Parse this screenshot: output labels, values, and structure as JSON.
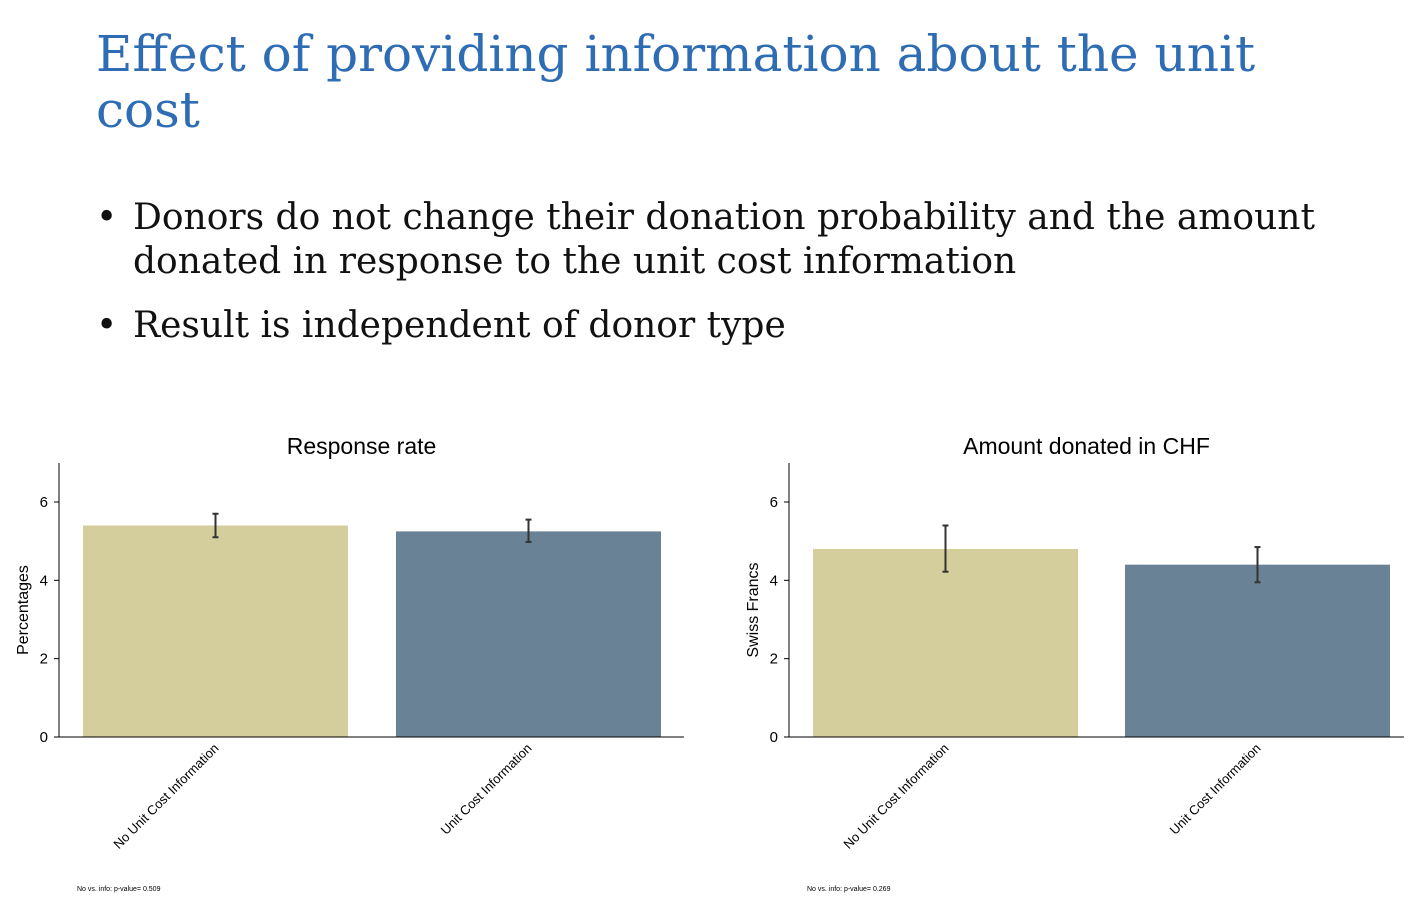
{
  "slide": {
    "title": "Effect of providing information about the unit cost",
    "bullets": [
      "Donors do not change their donation probability and the amount donated in response to the unit cost information",
      "Result is independent of donor type"
    ]
  },
  "colors": {
    "title": "#2e6db4",
    "bar_no_info": "#d4ce9d",
    "bar_info": "#6a8296",
    "error_bar": "#333333"
  },
  "chart_data": [
    {
      "type": "bar",
      "title": "Response rate",
      "ylabel": "Percentages",
      "xlabel": "",
      "categories": [
        "No Unit Cost Information",
        "Unit Cost Information"
      ],
      "values": [
        5.4,
        5.25
      ],
      "error_low": [
        5.1,
        4.98
      ],
      "error_high": [
        5.7,
        5.55
      ],
      "ylim": [
        0,
        7
      ],
      "yticks": [
        "0",
        "2",
        "4",
        "6"
      ],
      "grid": false,
      "note": "No vs. info: p-value= 0.509"
    },
    {
      "type": "bar",
      "title": "Amount donated in CHF",
      "ylabel": "Swiss Francs",
      "xlabel": "",
      "categories": [
        "No Unit Cost Information",
        "Unit Cost Information"
      ],
      "values": [
        4.8,
        4.4
      ],
      "error_low": [
        4.22,
        3.95
      ],
      "error_high": [
        5.4,
        4.85
      ],
      "ylim": [
        0,
        7
      ],
      "yticks": [
        "0",
        "2",
        "4",
        "6"
      ],
      "grid": false,
      "note": "No vs. info: p-value= 0.269"
    }
  ]
}
